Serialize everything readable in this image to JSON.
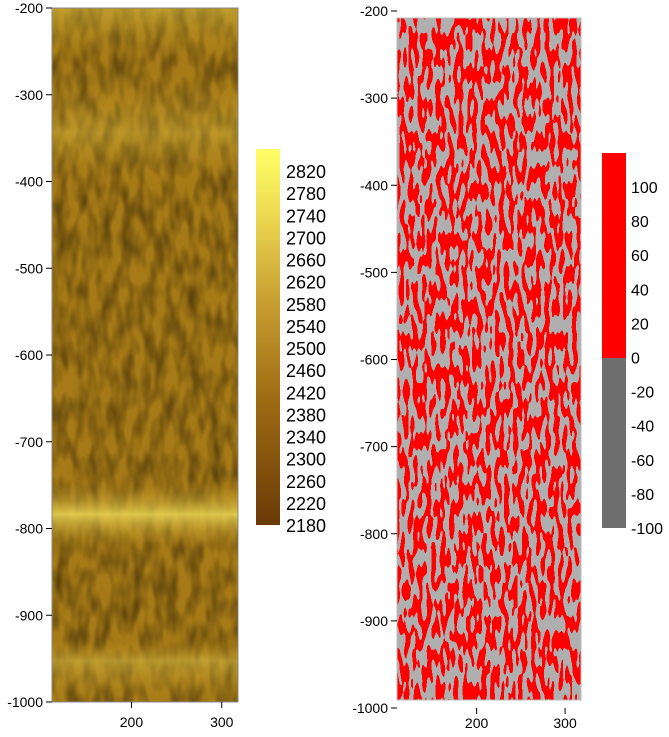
{
  "chart_data": [
    {
      "type": "heatmap",
      "title": "",
      "xlabel": "",
      "ylabel": "",
      "xlim": [
        112,
        318
      ],
      "ylim": [
        -1000,
        -200
      ],
      "xticks": [
        200,
        300
      ],
      "yticks": [
        -200,
        -300,
        -400,
        -500,
        -600,
        -700,
        -800,
        -900,
        -1000
      ],
      "grid": false,
      "colormap": "brown-to-yellow",
      "colors": {
        "low": "#6a3a08",
        "mid": "#b58a1c",
        "high": "#ffff66"
      },
      "value_range": [
        2180,
        2840
      ],
      "bright_bands_y": [
        -380,
        -800,
        -950
      ],
      "colorbar": {
        "labels": [
          2820,
          2780,
          2740,
          2700,
          2660,
          2620,
          2580,
          2540,
          2500,
          2460,
          2420,
          2380,
          2340,
          2300,
          2260,
          2220,
          2180
        ]
      }
    },
    {
      "type": "heatmap",
      "title": "",
      "xlabel": "",
      "ylabel": "",
      "xlim": [
        110,
        318
      ],
      "ylim": [
        -1000,
        -200
      ],
      "xticks": [
        200,
        300
      ],
      "yticks": [
        -200,
        -300,
        -400,
        -500,
        -600,
        -700,
        -800,
        -900,
        -1000
      ],
      "grid": false,
      "colormap": "binary",
      "colors": {
        "positive": "#ff0000",
        "negative": "#6e6e6e"
      },
      "value_range": [
        -100,
        100
      ],
      "colorbar": {
        "labels": [
          100,
          80,
          60,
          40,
          20,
          0,
          -20,
          -40,
          -60,
          -80,
          -100
        ],
        "split_at": 0
      }
    }
  ]
}
